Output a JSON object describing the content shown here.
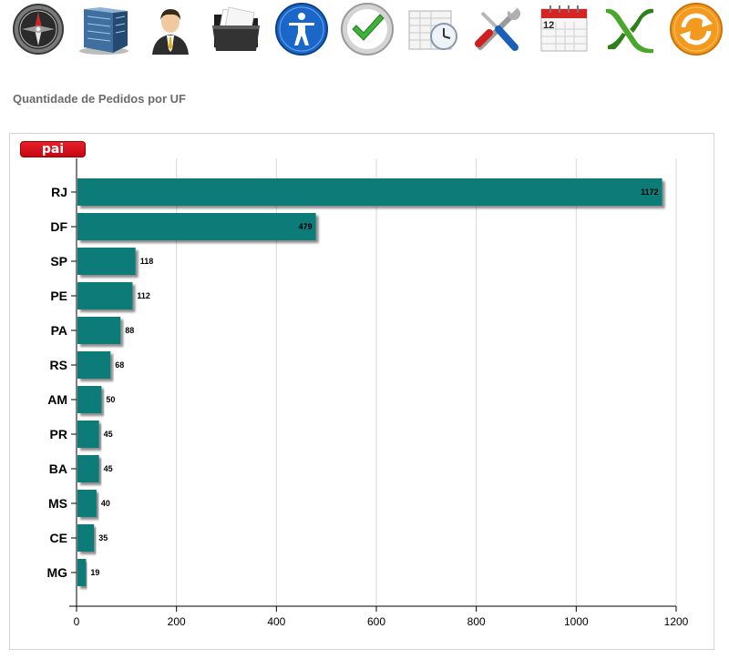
{
  "toolbar": {
    "icons": [
      {
        "name": "compass-icon"
      },
      {
        "name": "building-icon"
      },
      {
        "name": "user-icon"
      },
      {
        "name": "folder-icon"
      },
      {
        "name": "accessibility-icon"
      },
      {
        "name": "checkmark-icon"
      },
      {
        "name": "schedule-icon"
      },
      {
        "name": "tools-icon"
      },
      {
        "name": "calendar-icon",
        "text": "12"
      },
      {
        "name": "excel-icon"
      },
      {
        "name": "refresh-icon"
      }
    ]
  },
  "page": {
    "title": "Quantidade de Pedidos por UF"
  },
  "filter": {
    "label": "pai"
  },
  "colors": {
    "bar": "#0f7b78",
    "grid": "#d9d9d9",
    "filter_button": "#d8101c"
  },
  "chart_data": {
    "type": "bar",
    "orientation": "horizontal",
    "categories": [
      "RJ",
      "DF",
      "SP",
      "PE",
      "PA",
      "RS",
      "AM",
      "PR",
      "BA",
      "MS",
      "CE",
      "MG"
    ],
    "values": [
      1172,
      479,
      118,
      112,
      88,
      68,
      50,
      45,
      45,
      40,
      35,
      19
    ],
    "xlim": [
      0,
      1200
    ],
    "xticks": [
      0,
      200,
      400,
      600,
      800,
      1000,
      1200
    ],
    "grid": true,
    "data_labels": true
  }
}
